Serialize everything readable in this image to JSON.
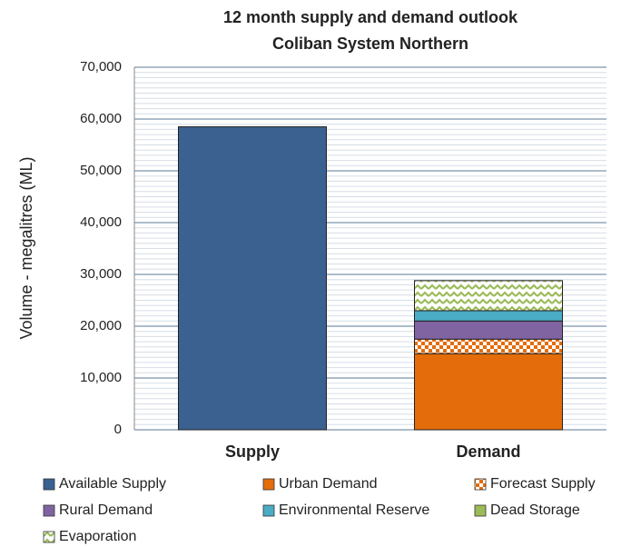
{
  "chart_data": {
    "type": "stacked_bar",
    "title": "12 month supply and demand outlook",
    "subtitle": "Coliban System Northern",
    "y_label": "Volume - megalitres (ML)",
    "categories": [
      "Supply",
      "Demand"
    ],
    "series": [
      {
        "name": "Available Supply",
        "color": "#3b6191",
        "values": [
          58500,
          0
        ]
      },
      {
        "name": "Urban Demand",
        "color": "#e46c0a",
        "values": [
          0,
          14700
        ]
      },
      {
        "name": "Forecast Supply",
        "color": "#e46c0a",
        "pattern": "checks",
        "values": [
          0,
          2800
        ]
      },
      {
        "name": "Rural Demand",
        "color": "#8064a2",
        "values": [
          0,
          3500
        ]
      },
      {
        "name": "Environmental Reserve",
        "color": "#4bacc6",
        "values": [
          0,
          2000
        ]
      },
      {
        "name": "Dead Storage",
        "color": "#9bbb59",
        "values": [
          0,
          0
        ]
      },
      {
        "name": "Evaporation",
        "color": "#9bbb59",
        "pattern": "zigzag",
        "values": [
          0,
          5800
        ]
      }
    ],
    "ylim": [
      0,
      70000
    ],
    "yticks": [
      0,
      {
        "value": 10000,
        "label": "10,000"
      },
      {
        "value": 20000,
        "label": "20,000"
      },
      {
        "value": 30000,
        "label": "30,000"
      },
      {
        "value": 40000,
        "label": "40,000"
      },
      {
        "value": 50000,
        "label": "50,000"
      },
      {
        "value": 60000,
        "label": "60,000"
      },
      {
        "value": 70000,
        "label": "70,000"
      }
    ],
    "grid": true,
    "legend": "bottom"
  }
}
